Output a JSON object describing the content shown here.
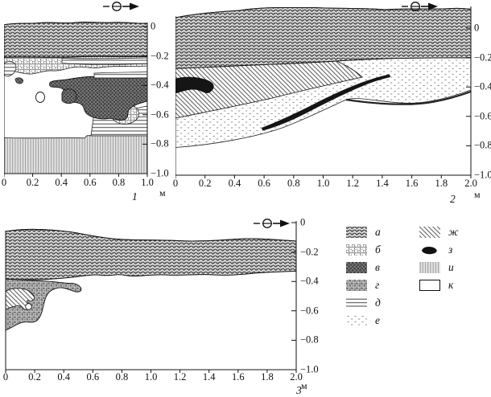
{
  "figure": {
    "icons": {
      "direction_marker": "line-circle-arrow"
    },
    "panels": [
      {
        "label": "1",
        "x_unit": "м",
        "x_ticks": [
          "0",
          "0.2",
          "0.4",
          "0.6",
          "0.8",
          "1.0"
        ],
        "y_ticks": [
          "0",
          "−0.2",
          "−0.4",
          "−0.6",
          "−0.8",
          "−1.0"
        ],
        "patterns_present": [
          "а",
          "б",
          "в",
          "д",
          "и",
          "к"
        ]
      },
      {
        "label": "2",
        "x_unit": "м",
        "x_ticks": [
          "0",
          "0.2",
          "0.4",
          "0.6",
          "0.8",
          "1.0",
          "1.2",
          "1.4",
          "1.6",
          "1.8",
          "2.0"
        ],
        "y_ticks": [
          "0",
          "−0.2",
          "−0.4",
          "−0.6",
          "−0.8",
          "−1.0"
        ],
        "patterns_present": [
          "а",
          "ж",
          "з",
          "е",
          "к"
        ]
      },
      {
        "label": "3",
        "x_unit": "м",
        "x_ticks": [
          "0",
          "0.2",
          "0.4",
          "0.6",
          "0.8",
          "1.0",
          "1.2",
          "1.4",
          "1.6",
          "1.8",
          "2.0"
        ],
        "y_ticks": [
          "0",
          "−0.2",
          "−0.4",
          "−0.6",
          "−0.8",
          "−1.0"
        ],
        "patterns_present": [
          "а",
          "г",
          "ж",
          "к"
        ]
      }
    ],
    "legend": {
      "items": [
        {
          "key": "а",
          "pattern": "dense-wavy-weave"
        },
        {
          "key": "б",
          "pattern": "open-chain-crosshatch"
        },
        {
          "key": "в",
          "pattern": "dark-dense-crosshatch"
        },
        {
          "key": "г",
          "pattern": "medium-dark-crosshatch"
        },
        {
          "key": "д",
          "pattern": "horizontal-lines"
        },
        {
          "key": "е",
          "pattern": "sparse-dots"
        },
        {
          "key": "ж",
          "pattern": "diagonal-hatch"
        },
        {
          "key": "з",
          "pattern": "solid-black"
        },
        {
          "key": "и",
          "pattern": "vertical-lines"
        },
        {
          "key": "к",
          "pattern": "blank-white"
        }
      ]
    }
  }
}
